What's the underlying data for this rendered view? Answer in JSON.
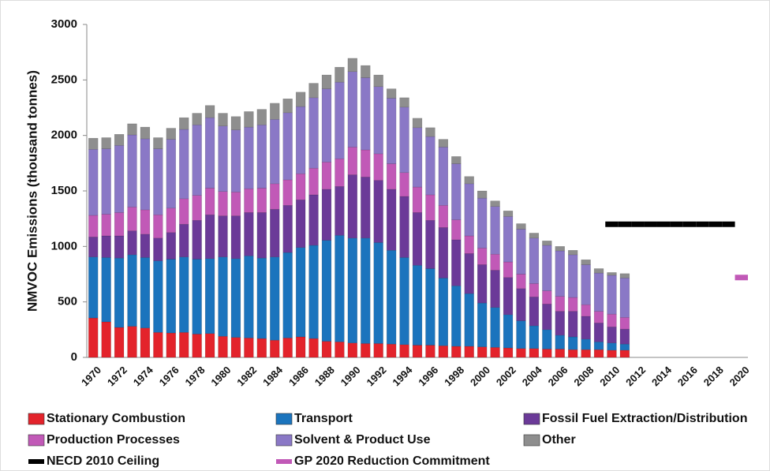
{
  "chart_data": {
    "type": "bar",
    "stacked": true,
    "y_label": "NMVOC Emissions (thousand tonnes)",
    "categories": [
      "1970",
      null,
      "1972",
      null,
      "1974",
      null,
      "1976",
      null,
      "1978",
      null,
      "1980",
      null,
      "1982",
      null,
      "1984",
      null,
      "1986",
      null,
      "1988",
      null,
      "1990",
      null,
      "1992",
      null,
      "1994",
      null,
      "1996",
      null,
      "1998",
      null,
      "2000",
      null,
      "2002",
      null,
      "2004",
      null,
      "2006",
      null,
      "2008",
      null,
      "2010",
      null,
      "2012",
      null,
      "2014",
      null,
      "2016",
      null,
      "2018",
      null,
      "2020"
    ],
    "ylim": [
      0,
      3000
    ],
    "yticks": [
      0,
      500,
      1000,
      1500,
      2000,
      2500,
      3000
    ],
    "series": [
      {
        "name": "Stationary Combustion",
        "color": "#e3232b",
        "values": [
          355,
          320,
          270,
          280,
          265,
          225,
          220,
          225,
          210,
          215,
          190,
          180,
          175,
          170,
          155,
          175,
          185,
          170,
          145,
          140,
          130,
          125,
          125,
          120,
          115,
          110,
          110,
          105,
          100,
          100,
          95,
          90,
          85,
          80,
          80,
          75,
          75,
          70,
          70,
          70,
          65,
          65,
          null,
          null,
          null,
          null,
          null,
          null,
          null,
          null,
          null
        ]
      },
      {
        "name": "Transport",
        "color": "#1b74bd",
        "values": [
          550,
          580,
          625,
          645,
          635,
          645,
          665,
          680,
          675,
          675,
          715,
          710,
          740,
          725,
          750,
          770,
          805,
          840,
          910,
          960,
          945,
          950,
          910,
          845,
          785,
          720,
          690,
          610,
          545,
          475,
          395,
          360,
          300,
          250,
          205,
          175,
          125,
          115,
          95,
          70,
          65,
          55,
          null,
          null,
          null,
          null,
          null,
          null,
          null,
          null,
          null
        ]
      },
      {
        "name": "Fossil Fuel Extraction/Distribution",
        "color": "#6b3a98",
        "values": [
          180,
          195,
          200,
          215,
          210,
          205,
          240,
          295,
          350,
          395,
          370,
          385,
          390,
          410,
          430,
          425,
          430,
          455,
          460,
          440,
          570,
          550,
          560,
          550,
          550,
          475,
          435,
          455,
          415,
          360,
          345,
          335,
          335,
          290,
          260,
          230,
          215,
          230,
          205,
          170,
          145,
          135,
          null,
          null,
          null,
          null,
          null,
          null,
          null,
          null,
          null
        ]
      },
      {
        "name": "Production Processes",
        "color": "#c159b7",
        "values": [
          195,
          195,
          210,
          215,
          220,
          210,
          220,
          230,
          225,
          240,
          220,
          215,
          215,
          220,
          230,
          230,
          235,
          240,
          245,
          250,
          250,
          245,
          240,
          230,
          215,
          230,
          230,
          200,
          180,
          160,
          150,
          145,
          140,
          130,
          120,
          120,
          135,
          125,
          105,
          105,
          115,
          105,
          null,
          null,
          null,
          null,
          null,
          null,
          null,
          null,
          null
        ]
      },
      {
        "name": "Solvent & Product Use",
        "color": "#8a78c6",
        "values": [
          595,
          590,
          605,
          650,
          640,
          595,
          620,
          625,
          635,
          635,
          590,
          560,
          555,
          570,
          580,
          605,
          605,
          635,
          660,
          690,
          680,
          650,
          605,
          590,
          590,
          535,
          525,
          525,
          505,
          470,
          450,
          430,
          410,
          405,
          410,
          410,
          410,
          385,
          360,
          345,
          350,
          355,
          null,
          null,
          null,
          null,
          null,
          null,
          null,
          null,
          null
        ]
      },
      {
        "name": "Other",
        "color": "#8e8e8e",
        "values": [
          100,
          100,
          100,
          100,
          105,
          100,
          100,
          105,
          105,
          110,
          115,
          120,
          140,
          140,
          145,
          125,
          130,
          130,
          125,
          135,
          120,
          110,
          105,
          85,
          85,
          85,
          80,
          70,
          65,
          65,
          65,
          50,
          50,
          50,
          45,
          40,
          40,
          40,
          45,
          40,
          25,
          40,
          null,
          null,
          null,
          null,
          null,
          null,
          null,
          null,
          null
        ]
      },
      {
        "name": "NECD 2010 Ceiling",
        "color": "#000000",
        "type": "line",
        "values": [
          null,
          null,
          null,
          null,
          null,
          null,
          null,
          null,
          null,
          null,
          null,
          null,
          null,
          null,
          null,
          null,
          null,
          null,
          null,
          null,
          null,
          null,
          null,
          null,
          null,
          null,
          null,
          null,
          null,
          null,
          null,
          null,
          null,
          null,
          null,
          null,
          null,
          null,
          null,
          null,
          1200,
          1200,
          1200,
          1200,
          1200,
          1200,
          1200,
          1200,
          1200,
          1200,
          null
        ]
      },
      {
        "name": "GP 2020 Reduction Commitment",
        "color": "#c159b7",
        "type": "line",
        "values": [
          null,
          null,
          null,
          null,
          null,
          null,
          null,
          null,
          null,
          null,
          null,
          null,
          null,
          null,
          null,
          null,
          null,
          null,
          null,
          null,
          null,
          null,
          null,
          null,
          null,
          null,
          null,
          null,
          null,
          null,
          null,
          null,
          null,
          null,
          null,
          null,
          null,
          null,
          null,
          null,
          null,
          null,
          null,
          null,
          null,
          null,
          null,
          null,
          null,
          null,
          720
        ]
      }
    ]
  }
}
